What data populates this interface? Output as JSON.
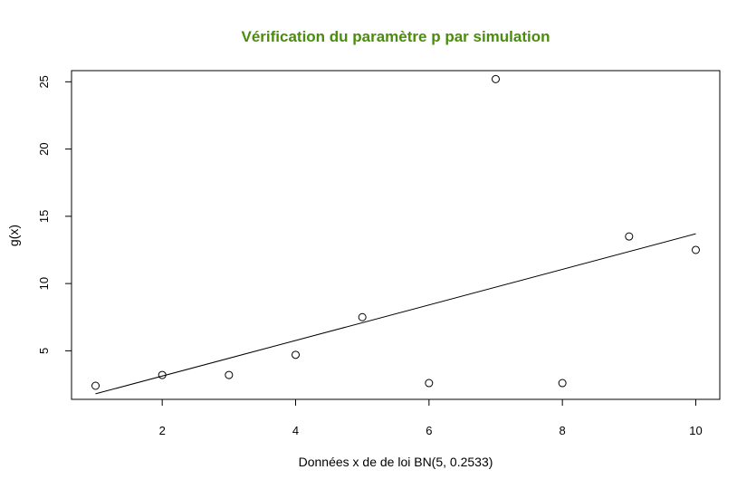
{
  "chart_data": {
    "type": "scatter",
    "title": "Vérification du paramètre p par simulation",
    "xlabel": "Données x de de loi BN(5, 0.2533)",
    "ylabel": "g(x)",
    "xlim": [
      0.64,
      10.36
    ],
    "ylim": [
      1.39,
      25.83
    ],
    "x_ticks": [
      2,
      4,
      6,
      8,
      10
    ],
    "y_ticks": [
      5,
      10,
      15,
      20,
      25
    ],
    "grid": false,
    "points": [
      {
        "x": 1,
        "y": 2.4
      },
      {
        "x": 2,
        "y": 3.2
      },
      {
        "x": 3,
        "y": 3.2
      },
      {
        "x": 4,
        "y": 4.7
      },
      {
        "x": 5,
        "y": 7.5
      },
      {
        "x": 6,
        "y": 2.6
      },
      {
        "x": 7,
        "y": 25.2
      },
      {
        "x": 8,
        "y": 2.6
      },
      {
        "x": 9,
        "y": 13.5
      },
      {
        "x": 10,
        "y": 12.5
      }
    ],
    "fit_line": {
      "x": [
        1,
        10
      ],
      "y": [
        1.8,
        13.7
      ]
    },
    "colors": {
      "title": "#4a8c0c",
      "marks": "#000000"
    }
  }
}
